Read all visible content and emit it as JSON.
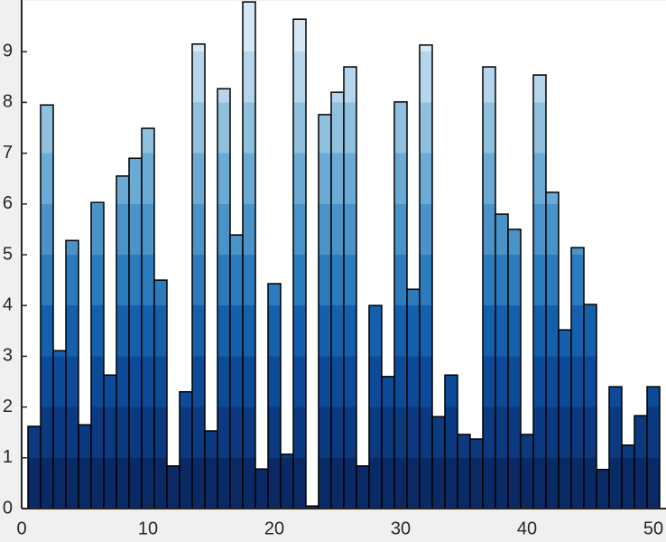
{
  "chart_data": {
    "type": "bar",
    "x": [
      1,
      2,
      3,
      4,
      5,
      6,
      7,
      8,
      9,
      10,
      11,
      12,
      13,
      14,
      15,
      16,
      17,
      18,
      19,
      20,
      21,
      22,
      23,
      24,
      25,
      26,
      27,
      28,
      29,
      30,
      31,
      32,
      33,
      34,
      35,
      36,
      37,
      38,
      39,
      40,
      41,
      42,
      43,
      44,
      45,
      46,
      47,
      48,
      49,
      50
    ],
    "values": [
      1.62,
      7.95,
      3.11,
      5.28,
      1.65,
      6.03,
      2.63,
      6.55,
      6.9,
      7.49,
      4.5,
      0.84,
      2.3,
      9.15,
      1.53,
      8.27,
      5.39,
      9.98,
      0.78,
      4.43,
      1.07,
      9.64,
      0.05,
      7.76,
      8.2,
      8.7,
      0.84,
      4.0,
      2.6,
      8.01,
      4.32,
      9.13,
      1.81,
      2.63,
      1.46,
      1.37,
      8.7,
      5.8,
      5.5,
      1.46,
      8.54,
      6.23,
      3.52,
      5.14,
      4.02,
      0.77,
      2.4,
      1.25,
      1.83,
      2.4
    ],
    "xlim": [
      0,
      51
    ],
    "ylim": [
      0,
      10
    ],
    "xticks": [
      0,
      10,
      20,
      30,
      40,
      50
    ],
    "yticks": [
      0,
      1,
      2,
      3,
      4,
      5,
      6,
      7,
      8,
      9
    ],
    "colors": [
      "#0a2a66",
      "#0b3a80",
      "#0d4a98",
      "#1460ac",
      "#2c7bbd",
      "#4a93c8",
      "#6aaad4",
      "#8fc1df",
      "#b4d5ec",
      "#d6e7f6"
    ]
  }
}
